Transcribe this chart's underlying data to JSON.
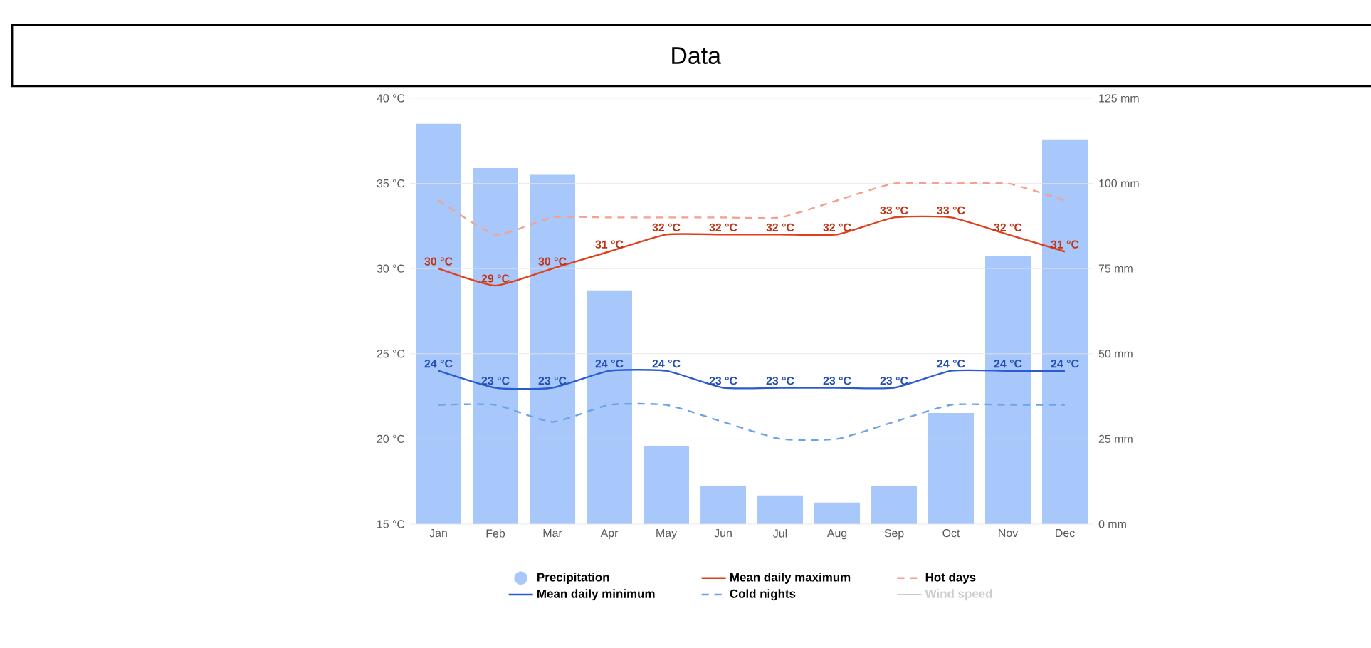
{
  "chart_data": {
    "type": "line",
    "title": "Data",
    "categories": [
      "Jan",
      "Feb",
      "Mar",
      "Apr",
      "May",
      "Jun",
      "Jul",
      "Aug",
      "Sep",
      "Oct",
      "Nov",
      "Dec"
    ],
    "series": [
      {
        "name": "Precipitation",
        "type": "bar",
        "axis": "y2",
        "color": "#a8c8fc",
        "values": [
          117.5,
          104.5,
          102.5,
          68.6,
          23,
          11.3,
          8.4,
          6.3,
          11.3,
          32.6,
          78.6,
          112.9
        ]
      },
      {
        "name": "Mean daily maximum",
        "color": "#e0401c",
        "line_style": "solid",
        "values": [
          30,
          29,
          30,
          31,
          32,
          32,
          32,
          32,
          33,
          33,
          32,
          31
        ],
        "value_labels": [
          "30 °C",
          "29 °C",
          "30 °C",
          "31 °C",
          "32 °C",
          "32 °C",
          "32 °C",
          "32 °C",
          "33 °C",
          "33 °C",
          "32 °C",
          "31 °C"
        ]
      },
      {
        "name": "Hot days",
        "color": "#f4a08c",
        "line_style": "dashed",
        "values": [
          34,
          32,
          33,
          33,
          33,
          33,
          33,
          34,
          35,
          35,
          35,
          34
        ]
      },
      {
        "name": "Mean daily minimum",
        "color": "#2a5cd0",
        "line_style": "solid",
        "values": [
          24,
          23,
          23,
          24,
          24,
          23,
          23,
          23,
          23,
          24,
          24,
          24
        ],
        "value_labels": [
          "24 °C",
          "23 °C",
          "23 °C",
          "24 °C",
          "24 °C",
          "23 °C",
          "23 °C",
          "23 °C",
          "23 °C",
          "24 °C",
          "24 °C",
          "24 °C"
        ]
      },
      {
        "name": "Cold nights",
        "color": "#6aa4e8",
        "line_style": "dashed",
        "values": [
          22,
          22,
          21,
          22,
          22,
          21,
          20,
          20,
          21,
          22,
          22,
          22
        ]
      },
      {
        "name": "Wind speed",
        "color": "#cccccc",
        "line_style": "solid",
        "values": [
          null,
          null,
          null,
          null,
          null,
          null,
          null,
          null,
          null,
          null,
          null,
          null
        ]
      }
    ],
    "ylim": [
      15,
      40
    ],
    "yticks": [
      {
        "value": 15,
        "label": "15 °C"
      },
      {
        "value": 20,
        "label": "20 °C"
      },
      {
        "value": 25,
        "label": "25 °C"
      },
      {
        "value": 30,
        "label": "30 °C"
      },
      {
        "value": 35,
        "label": "35 °C"
      },
      {
        "value": 40,
        "label": "40 °C"
      }
    ],
    "y2lim": [
      0,
      125
    ],
    "y2ticks": [
      {
        "value": 0,
        "label": "0 mm"
      },
      {
        "value": 25,
        "label": "25 mm"
      },
      {
        "value": 50,
        "label": "50 mm"
      },
      {
        "value": 75,
        "label": "75 mm"
      },
      {
        "value": 100,
        "label": "100 mm"
      },
      {
        "value": 125,
        "label": "125 mm"
      }
    ],
    "grid": "y",
    "legend": "bottom",
    "marker": "none"
  }
}
